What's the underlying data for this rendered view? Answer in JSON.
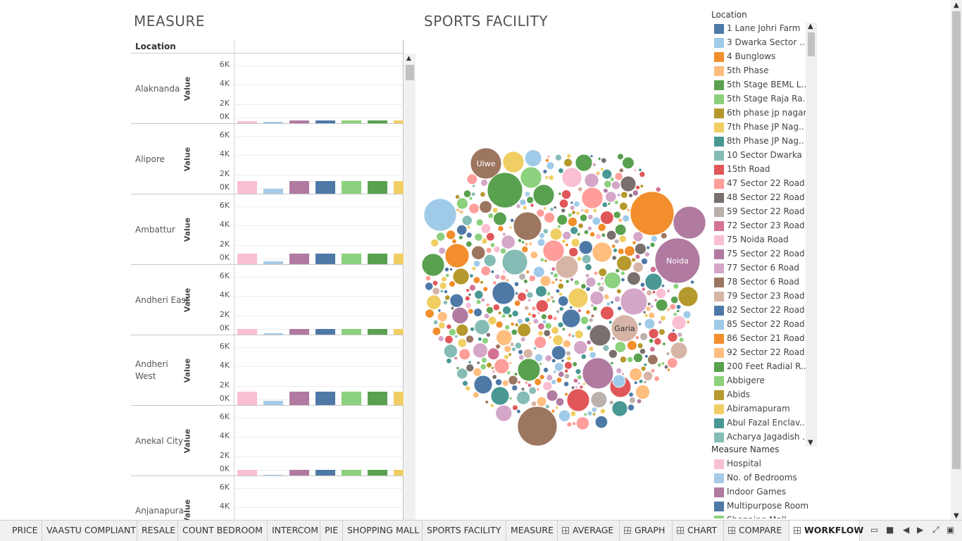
{
  "measure": {
    "title": "MEASURE",
    "location_header": "Location",
    "axis_label": "Value",
    "ticks": [
      "6K",
      "4K",
      "2K",
      "0K"
    ],
    "rows": [
      {
        "name": "Alaknanda",
        "values": [
          350,
          220,
          380,
          380,
          380,
          380,
          380
        ]
      },
      {
        "name": "Alipore",
        "values": [
          1550,
          640,
          1550,
          1550,
          1550,
          1550,
          1550
        ]
      },
      {
        "name": "Ambattur",
        "values": [
          1300,
          450,
          1300,
          1300,
          1300,
          1300,
          1300
        ]
      },
      {
        "name": "Andheri East",
        "values": [
          700,
          260,
          700,
          700,
          700,
          700,
          700
        ]
      },
      {
        "name": "Andheri West",
        "values": [
          1600,
          580,
          1600,
          1600,
          1600,
          1600,
          1600
        ]
      },
      {
        "name": "Anekal City",
        "values": [
          750,
          200,
          750,
          750,
          750,
          750,
          750
        ]
      },
      {
        "name": "Anjanapura",
        "values": [
          0,
          0,
          0,
          0,
          0,
          0,
          0
        ]
      }
    ],
    "ymax": 6800,
    "bar_colors": [
      "#f9bfd3",
      "#a6cbe8",
      "#b07aa1",
      "#4e79a7",
      "#8cd17d",
      "#59a14f",
      "#f1ce63"
    ]
  },
  "sports": {
    "title": "SPORTS FACILITY",
    "bubble_labels": [
      "Ulwe",
      "Noida",
      "Garia"
    ]
  },
  "legend": {
    "location_title": "Location",
    "locations": [
      {
        "label": "1 Lane Johri Farm",
        "color": "#4e79a7"
      },
      {
        "label": "3 Dwarka Sector ..",
        "color": "#a0cbe8"
      },
      {
        "label": "4 Bunglows",
        "color": "#f28e2b"
      },
      {
        "label": "5th Phase",
        "color": "#ffbe7d"
      },
      {
        "label": "5th Stage BEML L..",
        "color": "#59a14f"
      },
      {
        "label": "5th Stage Raja Ra..",
        "color": "#8cd17d"
      },
      {
        "label": "6th phase jp nagar",
        "color": "#b6992d"
      },
      {
        "label": "7th Phase JP Nag..",
        "color": "#f1ce63"
      },
      {
        "label": "8th Phase JP Nag..",
        "color": "#499894"
      },
      {
        "label": "10 Sector Dwarka",
        "color": "#86bcb6"
      },
      {
        "label": "15th Road",
        "color": "#e15759"
      },
      {
        "label": "47 Sector 22 Road",
        "color": "#ff9d9a"
      },
      {
        "label": "48 Sector 22 Road",
        "color": "#79706e"
      },
      {
        "label": "59 Sector 22 Road",
        "color": "#bab0ac"
      },
      {
        "label": "72 Sector 23 Road",
        "color": "#d37295"
      },
      {
        "label": "75 Noida Road",
        "color": "#fabfd2"
      },
      {
        "label": "75 Sector 22 Road",
        "color": "#b07aa1"
      },
      {
        "label": "77 Sector 6 Road",
        "color": "#d4a6c8"
      },
      {
        "label": "78 Sector 6 Road",
        "color": "#9d7660"
      },
      {
        "label": "79 Sector 23 Road",
        "color": "#d7b5a6"
      },
      {
        "label": "82 Sector 22 Road",
        "color": "#4e79a7"
      },
      {
        "label": "85 Sector 22 Road",
        "color": "#a0cbe8"
      },
      {
        "label": "86 Sector 21 Road",
        "color": "#f28e2b"
      },
      {
        "label": "92 Sector 22 Road",
        "color": "#ffbe7d"
      },
      {
        "label": "200 Feet Radial R..",
        "color": "#59a14f"
      },
      {
        "label": "Abbigere",
        "color": "#8cd17d"
      },
      {
        "label": "Abids",
        "color": "#b6992d"
      },
      {
        "label": "Abiramapuram",
        "color": "#f1ce63"
      },
      {
        "label": "Abul Fazal Enclav..",
        "color": "#499894"
      },
      {
        "label": "Acharya Jagadish ..",
        "color": "#86bcb6"
      }
    ],
    "measure_names_title": "Measure Names",
    "measure_names": [
      {
        "label": "Hospital",
        "color": "#f9bfd3"
      },
      {
        "label": "No. of Bedrooms",
        "color": "#a6cbe8"
      },
      {
        "label": "Indoor Games",
        "color": "#b07aa1"
      },
      {
        "label": "Multipurpose Room",
        "color": "#4e79a7"
      },
      {
        "label": "Shopping Mall",
        "color": "#8cd17d"
      }
    ]
  },
  "tabs": [
    {
      "label": "PRICE",
      "icon": false,
      "active": false
    },
    {
      "label": "VAASTU COMPLIANT",
      "icon": false,
      "active": false
    },
    {
      "label": "RESALE",
      "icon": false,
      "active": false
    },
    {
      "label": "COUNT BEDROOM",
      "icon": false,
      "active": false
    },
    {
      "label": "INTERCOM",
      "icon": false,
      "active": false
    },
    {
      "label": "PIE",
      "icon": false,
      "active": false
    },
    {
      "label": "SHOPPING MALL",
      "icon": false,
      "active": false
    },
    {
      "label": "SPORTS FACILITY",
      "icon": false,
      "active": false
    },
    {
      "label": "MEASURE",
      "icon": false,
      "active": false
    },
    {
      "label": "AVERAGE",
      "icon": true,
      "active": false
    },
    {
      "label": "GRAPH",
      "icon": true,
      "active": false
    },
    {
      "label": "CHART",
      "icon": true,
      "active": false
    },
    {
      "label": "COMPARE",
      "icon": true,
      "active": false
    },
    {
      "label": "WORKFLOW",
      "icon": true,
      "active": true
    }
  ]
}
